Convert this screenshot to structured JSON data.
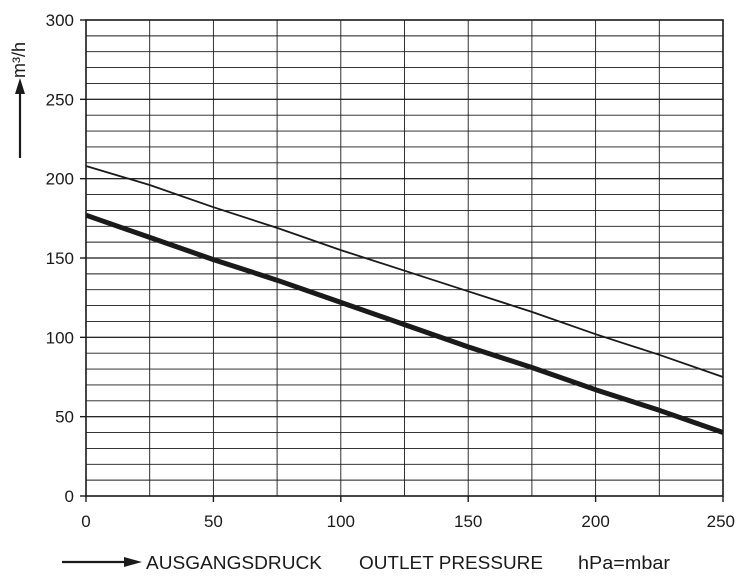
{
  "chart_data": {
    "type": "line",
    "title": "",
    "xlabel": {
      "german": "AUSGANGSDRUCK",
      "english": "OUTLET PRESSURE",
      "unit": "hPa=mbar"
    },
    "ylabel": "m³/h",
    "xlim": [
      0,
      250
    ],
    "ylim": [
      0,
      300
    ],
    "x_ticks": [
      0,
      50,
      100,
      150,
      200,
      250
    ],
    "y_ticks": [
      0,
      50,
      100,
      150,
      200,
      250,
      300
    ],
    "grid": true,
    "x_minor_step": 25,
    "y_minor_step": 10,
    "legend": "none",
    "series": [
      {
        "line_style": "thin",
        "color": "#1a1a1a",
        "x": [
          0,
          25,
          50,
          75,
          100,
          125,
          150,
          175,
          200,
          225,
          250
        ],
        "y": [
          208,
          196,
          182,
          169,
          155,
          142,
          129,
          116,
          102,
          89,
          75
        ]
      },
      {
        "line_style": "thick",
        "color": "#1a1a1a",
        "x": [
          0,
          25,
          50,
          75,
          100,
          125,
          150,
          175,
          200,
          225,
          250
        ],
        "y": [
          177,
          163,
          149,
          136,
          122,
          108,
          94,
          81,
          67,
          54,
          40
        ]
      }
    ]
  }
}
